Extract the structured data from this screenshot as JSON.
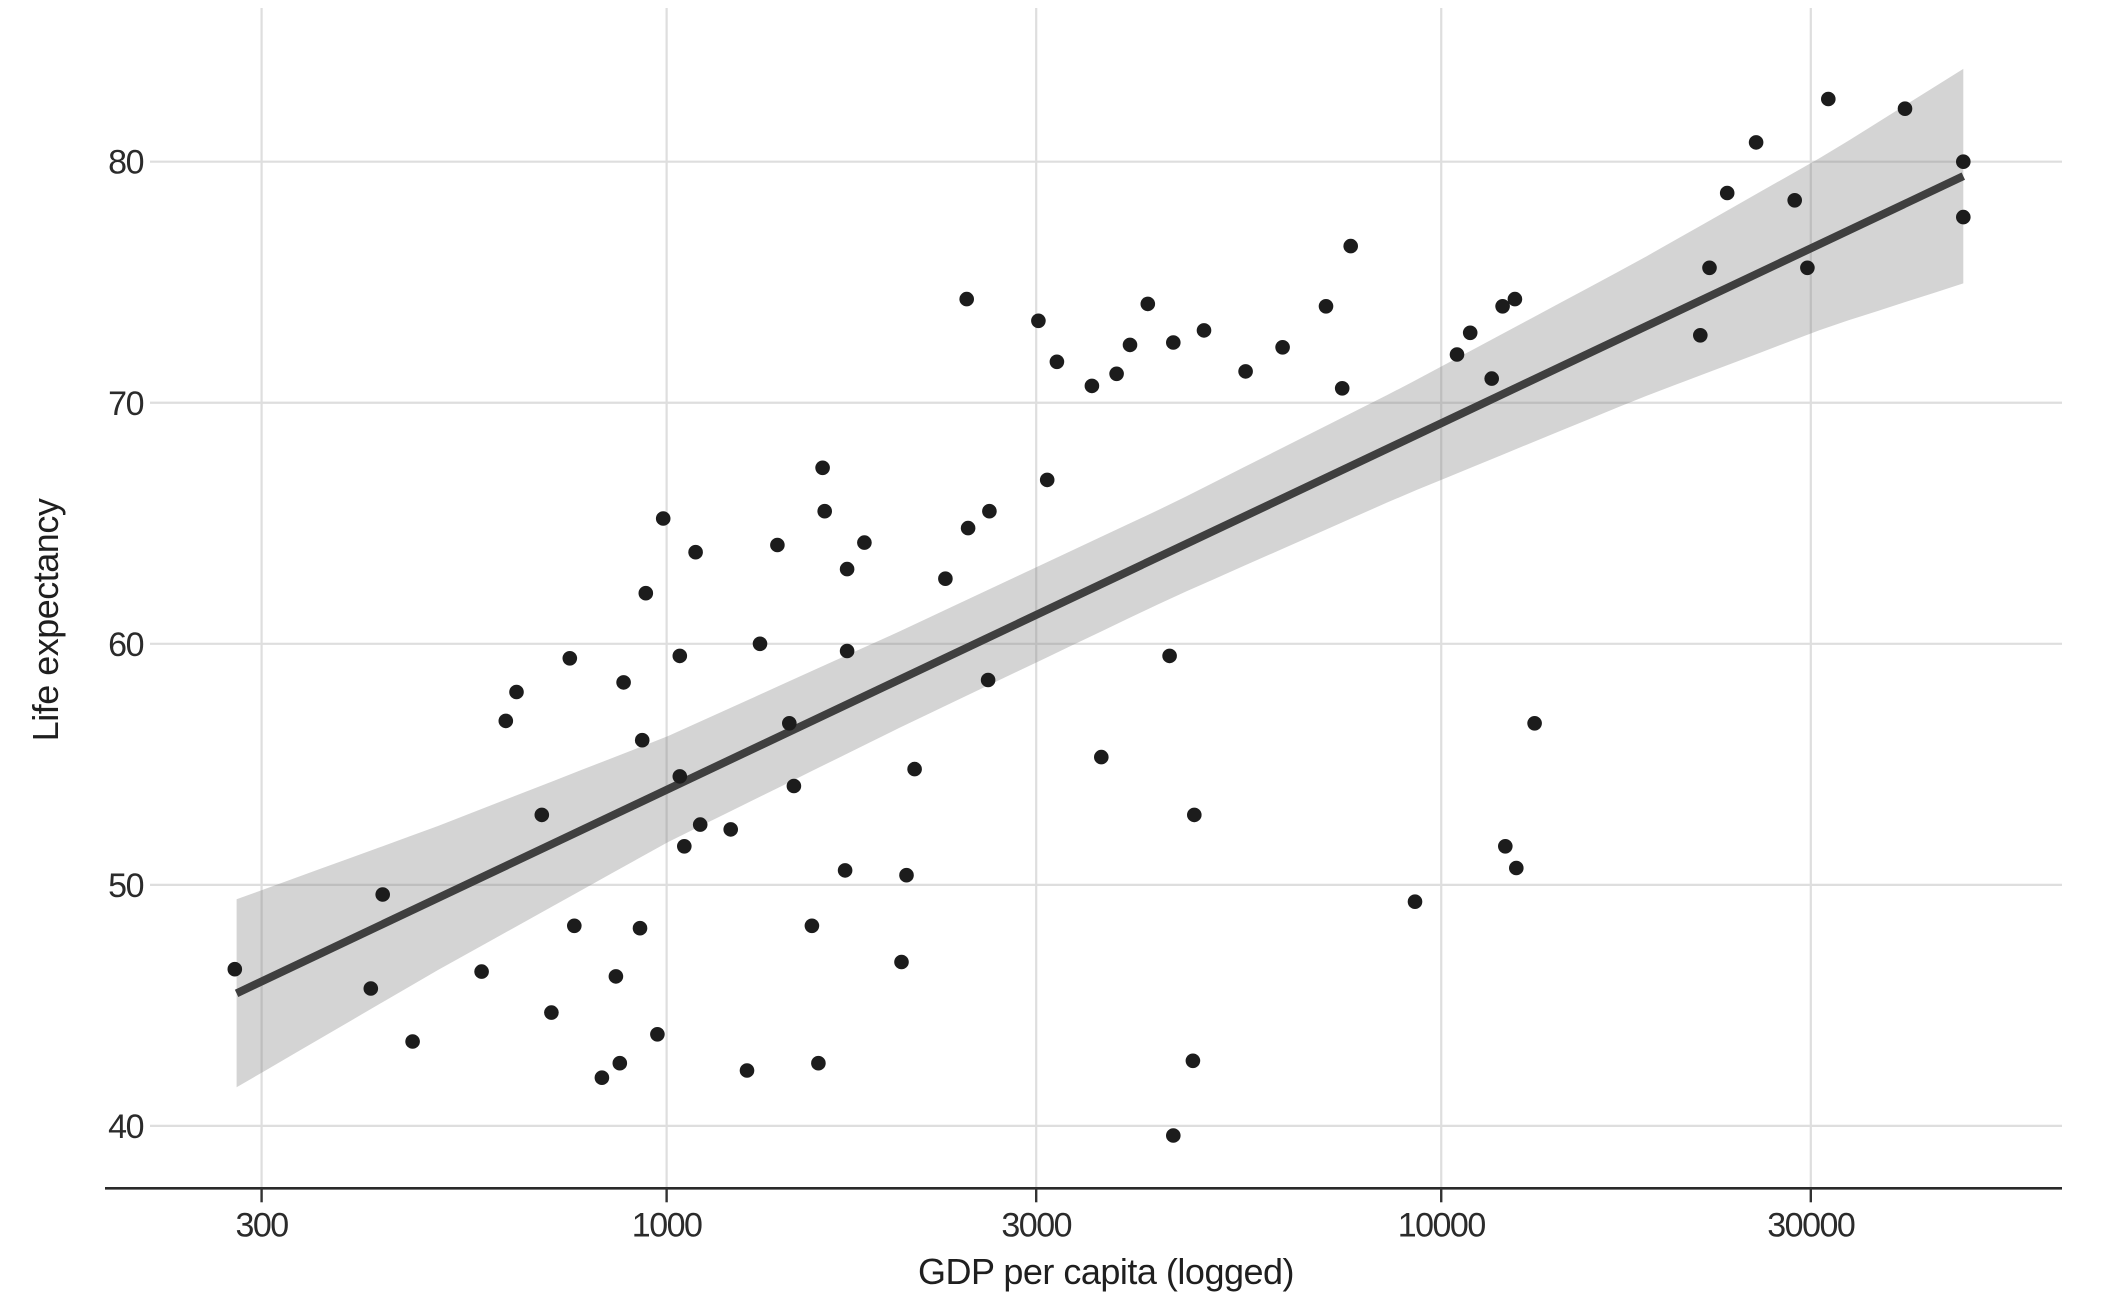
{
  "chart_data": {
    "type": "scatter",
    "title": "",
    "xlabel": "GDP per capita (logged)",
    "ylabel": "Life expectancy",
    "x_scale": "log10",
    "x_ticks": [
      "300",
      "1000",
      "3000",
      "10000",
      "30000"
    ],
    "x_tick_values": [
      300,
      1000,
      3000,
      10000,
      30000
    ],
    "y_ticks": [
      "40",
      "50",
      "60",
      "70",
      "80"
    ],
    "y_tick_values": [
      40,
      50,
      60,
      70,
      80
    ],
    "grid": "on",
    "legend": "none",
    "points": [
      [
        277,
        46.5
      ],
      [
        415,
        45.7
      ],
      [
        430,
        49.6
      ],
      [
        470,
        43.5
      ],
      [
        577,
        46.4
      ],
      [
        620,
        56.8
      ],
      [
        640,
        58.0
      ],
      [
        690,
        52.9
      ],
      [
        710,
        44.7
      ],
      [
        750,
        59.4
      ],
      [
        760,
        48.3
      ],
      [
        825,
        42.0
      ],
      [
        860,
        46.2
      ],
      [
        870,
        42.6
      ],
      [
        880,
        58.4
      ],
      [
        924,
        48.2
      ],
      [
        930,
        56.0
      ],
      [
        940,
        62.1
      ],
      [
        973,
        43.8
      ],
      [
        990,
        65.2
      ],
      [
        1040,
        59.5
      ],
      [
        1040,
        54.5
      ],
      [
        1054,
        51.6
      ],
      [
        1090,
        63.8
      ],
      [
        1105,
        52.5
      ],
      [
        1210,
        52.3
      ],
      [
        1270,
        42.3
      ],
      [
        1320,
        60.0
      ],
      [
        1390,
        64.1
      ],
      [
        1440,
        56.7
      ],
      [
        1460,
        54.1
      ],
      [
        1540,
        48.3
      ],
      [
        1570,
        42.6
      ],
      [
        1590,
        67.3
      ],
      [
        1600,
        65.5
      ],
      [
        1700,
        50.6
      ],
      [
        1710,
        63.1
      ],
      [
        1710,
        59.7
      ],
      [
        1800,
        64.2
      ],
      [
        2010,
        46.8
      ],
      [
        2040,
        50.4
      ],
      [
        2090,
        54.8
      ],
      [
        2290,
        62.7
      ],
      [
        2440,
        74.3
      ],
      [
        2450,
        64.8
      ],
      [
        2600,
        58.5
      ],
      [
        2610,
        65.5
      ],
      [
        3020,
        73.4
      ],
      [
        3100,
        66.8
      ],
      [
        3190,
        71.7
      ],
      [
        3540,
        70.7
      ],
      [
        3640,
        55.3
      ],
      [
        3810,
        71.2
      ],
      [
        3965,
        72.4
      ],
      [
        4180,
        74.1
      ],
      [
        4460,
        59.5
      ],
      [
        4510,
        72.5
      ],
      [
        4510,
        39.6
      ],
      [
        4780,
        42.7
      ],
      [
        4800,
        52.9
      ],
      [
        4940,
        73.0
      ],
      [
        5590,
        71.3
      ],
      [
        6240,
        72.3
      ],
      [
        7100,
        74.0
      ],
      [
        7450,
        70.6
      ],
      [
        7640,
        76.5
      ],
      [
        9250,
        49.3
      ],
      [
        10480,
        72.0
      ],
      [
        10900,
        72.9
      ],
      [
        11620,
        71.0
      ],
      [
        12000,
        74.0
      ],
      [
        12100,
        51.6
      ],
      [
        12450,
        74.3
      ],
      [
        12500,
        50.7
      ],
      [
        13200,
        56.7
      ],
      [
        21600,
        72.8
      ],
      [
        22200,
        75.6
      ],
      [
        23400,
        78.7
      ],
      [
        25500,
        80.8
      ],
      [
        28600,
        78.4
      ],
      [
        29700,
        75.6
      ],
      [
        31600,
        82.6
      ],
      [
        39700,
        82.2
      ],
      [
        47200,
        80.0
      ],
      [
        47200,
        77.7
      ]
    ],
    "trend": {
      "kind": "linear_in_log10x",
      "log10_x_start": 2.4448,
      "log10_x_end": 4.674,
      "y_start": 45.5,
      "y_end": 79.4
    },
    "confidence_band": {
      "stations_log10_x": [
        2.4448,
        2.7,
        3.0,
        3.3,
        3.65,
        3.95,
        4.25,
        4.5,
        4.674
      ],
      "half_width_y": [
        3.9,
        3.0,
        2.2,
        2.0,
        1.95,
        2.25,
        2.85,
        3.6,
        4.45
      ]
    },
    "colors": {
      "point": "#1c1c1c",
      "trend_line": "#3f3f3f",
      "band": "rgba(125,125,125,0.33)",
      "grid": "#dedede",
      "axis_line": "#2a2a2a",
      "tick_mark": "#333333",
      "tick_label": "#2b2b2b",
      "axis_title": "#1f1f1f",
      "background": "#ffffff"
    }
  }
}
